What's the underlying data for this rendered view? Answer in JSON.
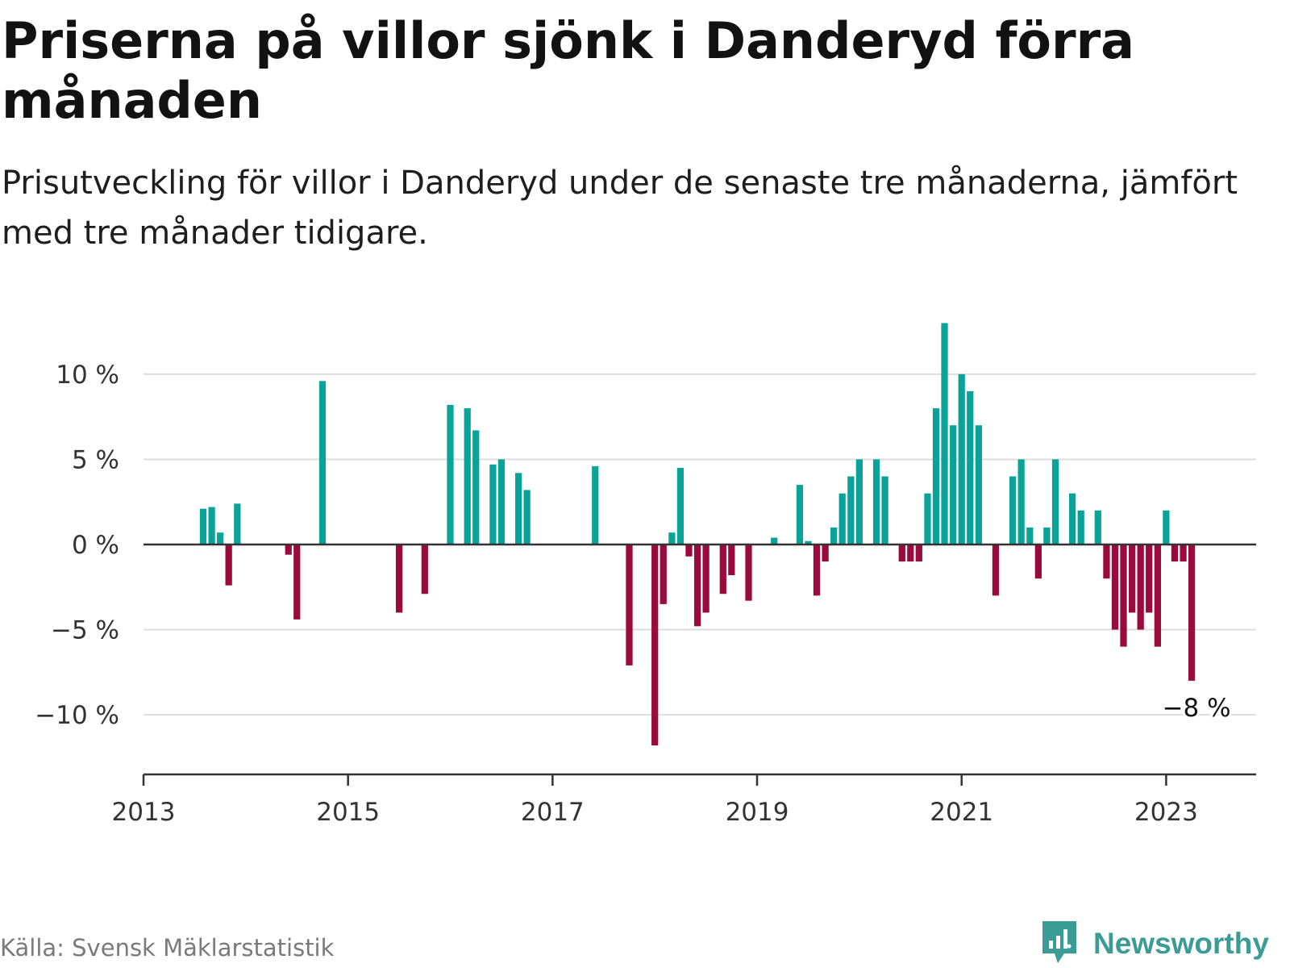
{
  "title": "Priserna på villor sjönk i Danderyd förra månaden",
  "subtitle": "Prisutveckling för villor i Danderyd under de senaste tre månaderna, jämfört med tre månader tidigare.",
  "source": "Källa: Svensk Mäklarstatistik",
  "brand": {
    "name": "Newsworthy",
    "icon": "newsworthy-logo-icon"
  },
  "colors": {
    "positive": "#0aa39a",
    "negative": "#9b0a3d",
    "grid": "#dddddd",
    "axis": "#333333",
    "brand": "#3a9c95"
  },
  "chart_data": {
    "type": "bar",
    "title": "Priserna på villor sjönk i Danderyd förra månaden",
    "xlabel": "",
    "ylabel": "",
    "ylim": [
      -13.5,
      13.5
    ],
    "xlim": [
      2013.0,
      2023.88
    ],
    "y_ticks": [
      10,
      5,
      0,
      -5,
      -10
    ],
    "y_tick_labels": [
      "10 %",
      "5 %",
      "0 %",
      "−5 %",
      "−10 %"
    ],
    "x_ticks": [
      2013,
      2015,
      2017,
      2019,
      2021,
      2023
    ],
    "x_tick_labels": [
      "2013",
      "2015",
      "2017",
      "2019",
      "2021",
      "2023"
    ],
    "grid": true,
    "annotation": {
      "x": 2023.25,
      "y": -8,
      "text": "−8 %"
    },
    "series": [
      {
        "name": "Prisutveckling",
        "points": [
          {
            "x": 2013.583,
            "y": 2.1
          },
          {
            "x": 2013.667,
            "y": 2.2
          },
          {
            "x": 2013.75,
            "y": 0.7
          },
          {
            "x": 2013.833,
            "y": -2.4
          },
          {
            "x": 2013.917,
            "y": 2.4
          },
          {
            "x": 2014.417,
            "y": -0.6
          },
          {
            "x": 2014.5,
            "y": -4.4
          },
          {
            "x": 2014.75,
            "y": 9.6
          },
          {
            "x": 2015.5,
            "y": -4.0
          },
          {
            "x": 2015.75,
            "y": -2.9
          },
          {
            "x": 2016.0,
            "y": 8.2
          },
          {
            "x": 2016.167,
            "y": 8.0
          },
          {
            "x": 2016.25,
            "y": 6.7
          },
          {
            "x": 2016.417,
            "y": 4.7
          },
          {
            "x": 2016.5,
            "y": 5.0
          },
          {
            "x": 2016.667,
            "y": 4.2
          },
          {
            "x": 2016.75,
            "y": 3.2
          },
          {
            "x": 2017.417,
            "y": 4.6
          },
          {
            "x": 2017.75,
            "y": -7.1
          },
          {
            "x": 2018.0,
            "y": -11.8
          },
          {
            "x": 2018.083,
            "y": -3.5
          },
          {
            "x": 2018.167,
            "y": 0.7
          },
          {
            "x": 2018.25,
            "y": 4.5
          },
          {
            "x": 2018.333,
            "y": -0.7
          },
          {
            "x": 2018.417,
            "y": -4.8
          },
          {
            "x": 2018.5,
            "y": -4.0
          },
          {
            "x": 2018.667,
            "y": -2.9
          },
          {
            "x": 2018.75,
            "y": -1.8
          },
          {
            "x": 2018.917,
            "y": -3.3
          },
          {
            "x": 2019.167,
            "y": 0.4
          },
          {
            "x": 2019.417,
            "y": 3.5
          },
          {
            "x": 2019.5,
            "y": 0.2
          },
          {
            "x": 2019.583,
            "y": -3.0
          },
          {
            "x": 2019.667,
            "y": -1.0
          },
          {
            "x": 2019.75,
            "y": 1.0
          },
          {
            "x": 2019.833,
            "y": 3.0
          },
          {
            "x": 2019.917,
            "y": 4.0
          },
          {
            "x": 2020.0,
            "y": 5.0
          },
          {
            "x": 2020.167,
            "y": 5.0
          },
          {
            "x": 2020.25,
            "y": 4.0
          },
          {
            "x": 2020.417,
            "y": -1.0
          },
          {
            "x": 2020.5,
            "y": -1.0
          },
          {
            "x": 2020.583,
            "y": -1.0
          },
          {
            "x": 2020.667,
            "y": 3.0
          },
          {
            "x": 2020.75,
            "y": 8.0
          },
          {
            "x": 2020.833,
            "y": 13.0
          },
          {
            "x": 2020.917,
            "y": 7.0
          },
          {
            "x": 2021.0,
            "y": 10.0
          },
          {
            "x": 2021.083,
            "y": 9.0
          },
          {
            "x": 2021.167,
            "y": 7.0
          },
          {
            "x": 2021.333,
            "y": -3.0
          },
          {
            "x": 2021.5,
            "y": 4.0
          },
          {
            "x": 2021.583,
            "y": 5.0
          },
          {
            "x": 2021.667,
            "y": 1.0
          },
          {
            "x": 2021.75,
            "y": -2.0
          },
          {
            "x": 2021.833,
            "y": 1.0
          },
          {
            "x": 2021.917,
            "y": 5.0
          },
          {
            "x": 2022.083,
            "y": 3.0
          },
          {
            "x": 2022.167,
            "y": 2.0
          },
          {
            "x": 2022.333,
            "y": 2.0
          },
          {
            "x": 2022.417,
            "y": -2.0
          },
          {
            "x": 2022.5,
            "y": -5.0
          },
          {
            "x": 2022.583,
            "y": -6.0
          },
          {
            "x": 2022.667,
            "y": -4.0
          },
          {
            "x": 2022.75,
            "y": -5.0
          },
          {
            "x": 2022.833,
            "y": -4.0
          },
          {
            "x": 2022.917,
            "y": -6.0
          },
          {
            "x": 2023.0,
            "y": 2.0
          },
          {
            "x": 2023.083,
            "y": -1.0
          },
          {
            "x": 2023.167,
            "y": -1.0
          },
          {
            "x": 2023.25,
            "y": -8.0
          }
        ]
      }
    ]
  }
}
